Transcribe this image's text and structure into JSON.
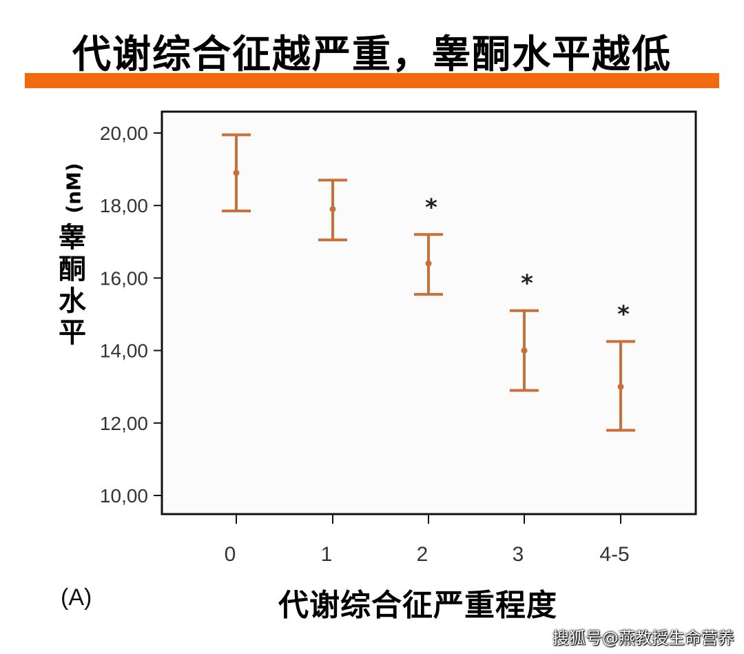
{
  "header": {
    "title": "代谢综合征越严重，睾酮水平越低"
  },
  "panel_label": "(A)",
  "watermark": "搜狐号@燕教授生命营养",
  "colors": {
    "accent_bar": "#f26a10",
    "error_bar": "#c8703a"
  },
  "chart_data": {
    "type": "errorbar",
    "title": "",
    "xlabel": "代谢综合征严重程度",
    "ylabel_unit": "(nM)",
    "ylabel_chars": [
      "睾",
      "酮",
      "水",
      "平"
    ],
    "ylim": [
      10,
      21
    ],
    "yticks": [
      10,
      12,
      14,
      16,
      18,
      20
    ],
    "ytick_labels": [
      "10,00",
      "12,00",
      "14,00",
      "16,00",
      "18,00",
      "20,00"
    ],
    "categories": [
      "0",
      "1",
      "2",
      "3",
      "4-5"
    ],
    "mean": [
      18.9,
      17.9,
      16.4,
      14.0,
      13.0
    ],
    "lower": [
      17.85,
      17.05,
      15.55,
      12.9,
      11.8
    ],
    "upper": [
      19.95,
      18.7,
      17.2,
      15.1,
      14.25
    ],
    "significance": [
      "",
      "",
      "*",
      "*",
      "*"
    ],
    "grid": false,
    "legend": "none"
  }
}
